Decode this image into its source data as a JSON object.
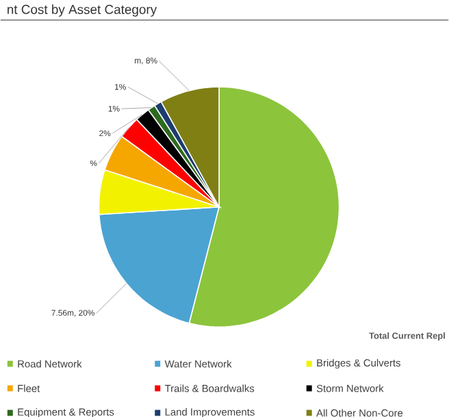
{
  "chart_data": {
    "type": "pie",
    "title": "nt Cost by Asset Category",
    "categories": [
      "Road Network",
      "Water Network",
      "Bridges & Culverts",
      "Fleet",
      "Trails & Boardwalks",
      "Storm Network",
      "Equipment & Reports",
      "Land Improvements",
      "All Other Non-Core"
    ],
    "values": [
      54,
      20,
      6,
      5,
      3,
      2,
      1,
      1,
      8
    ],
    "colors": [
      "#8cc43c",
      "#4ba3d2",
      "#f2f200",
      "#f5a700",
      "#ff0000",
      "#000000",
      "#2d6a1e",
      "#1d3d6e",
      "#7f7f14"
    ],
    "value_labels": [
      null,
      "7.56m, 20%",
      null,
      null,
      "%",
      "2%",
      "1%",
      "1%",
      "m, 8%"
    ],
    "legend": "bottom",
    "annotations": [
      "Total Current Repl"
    ]
  }
}
